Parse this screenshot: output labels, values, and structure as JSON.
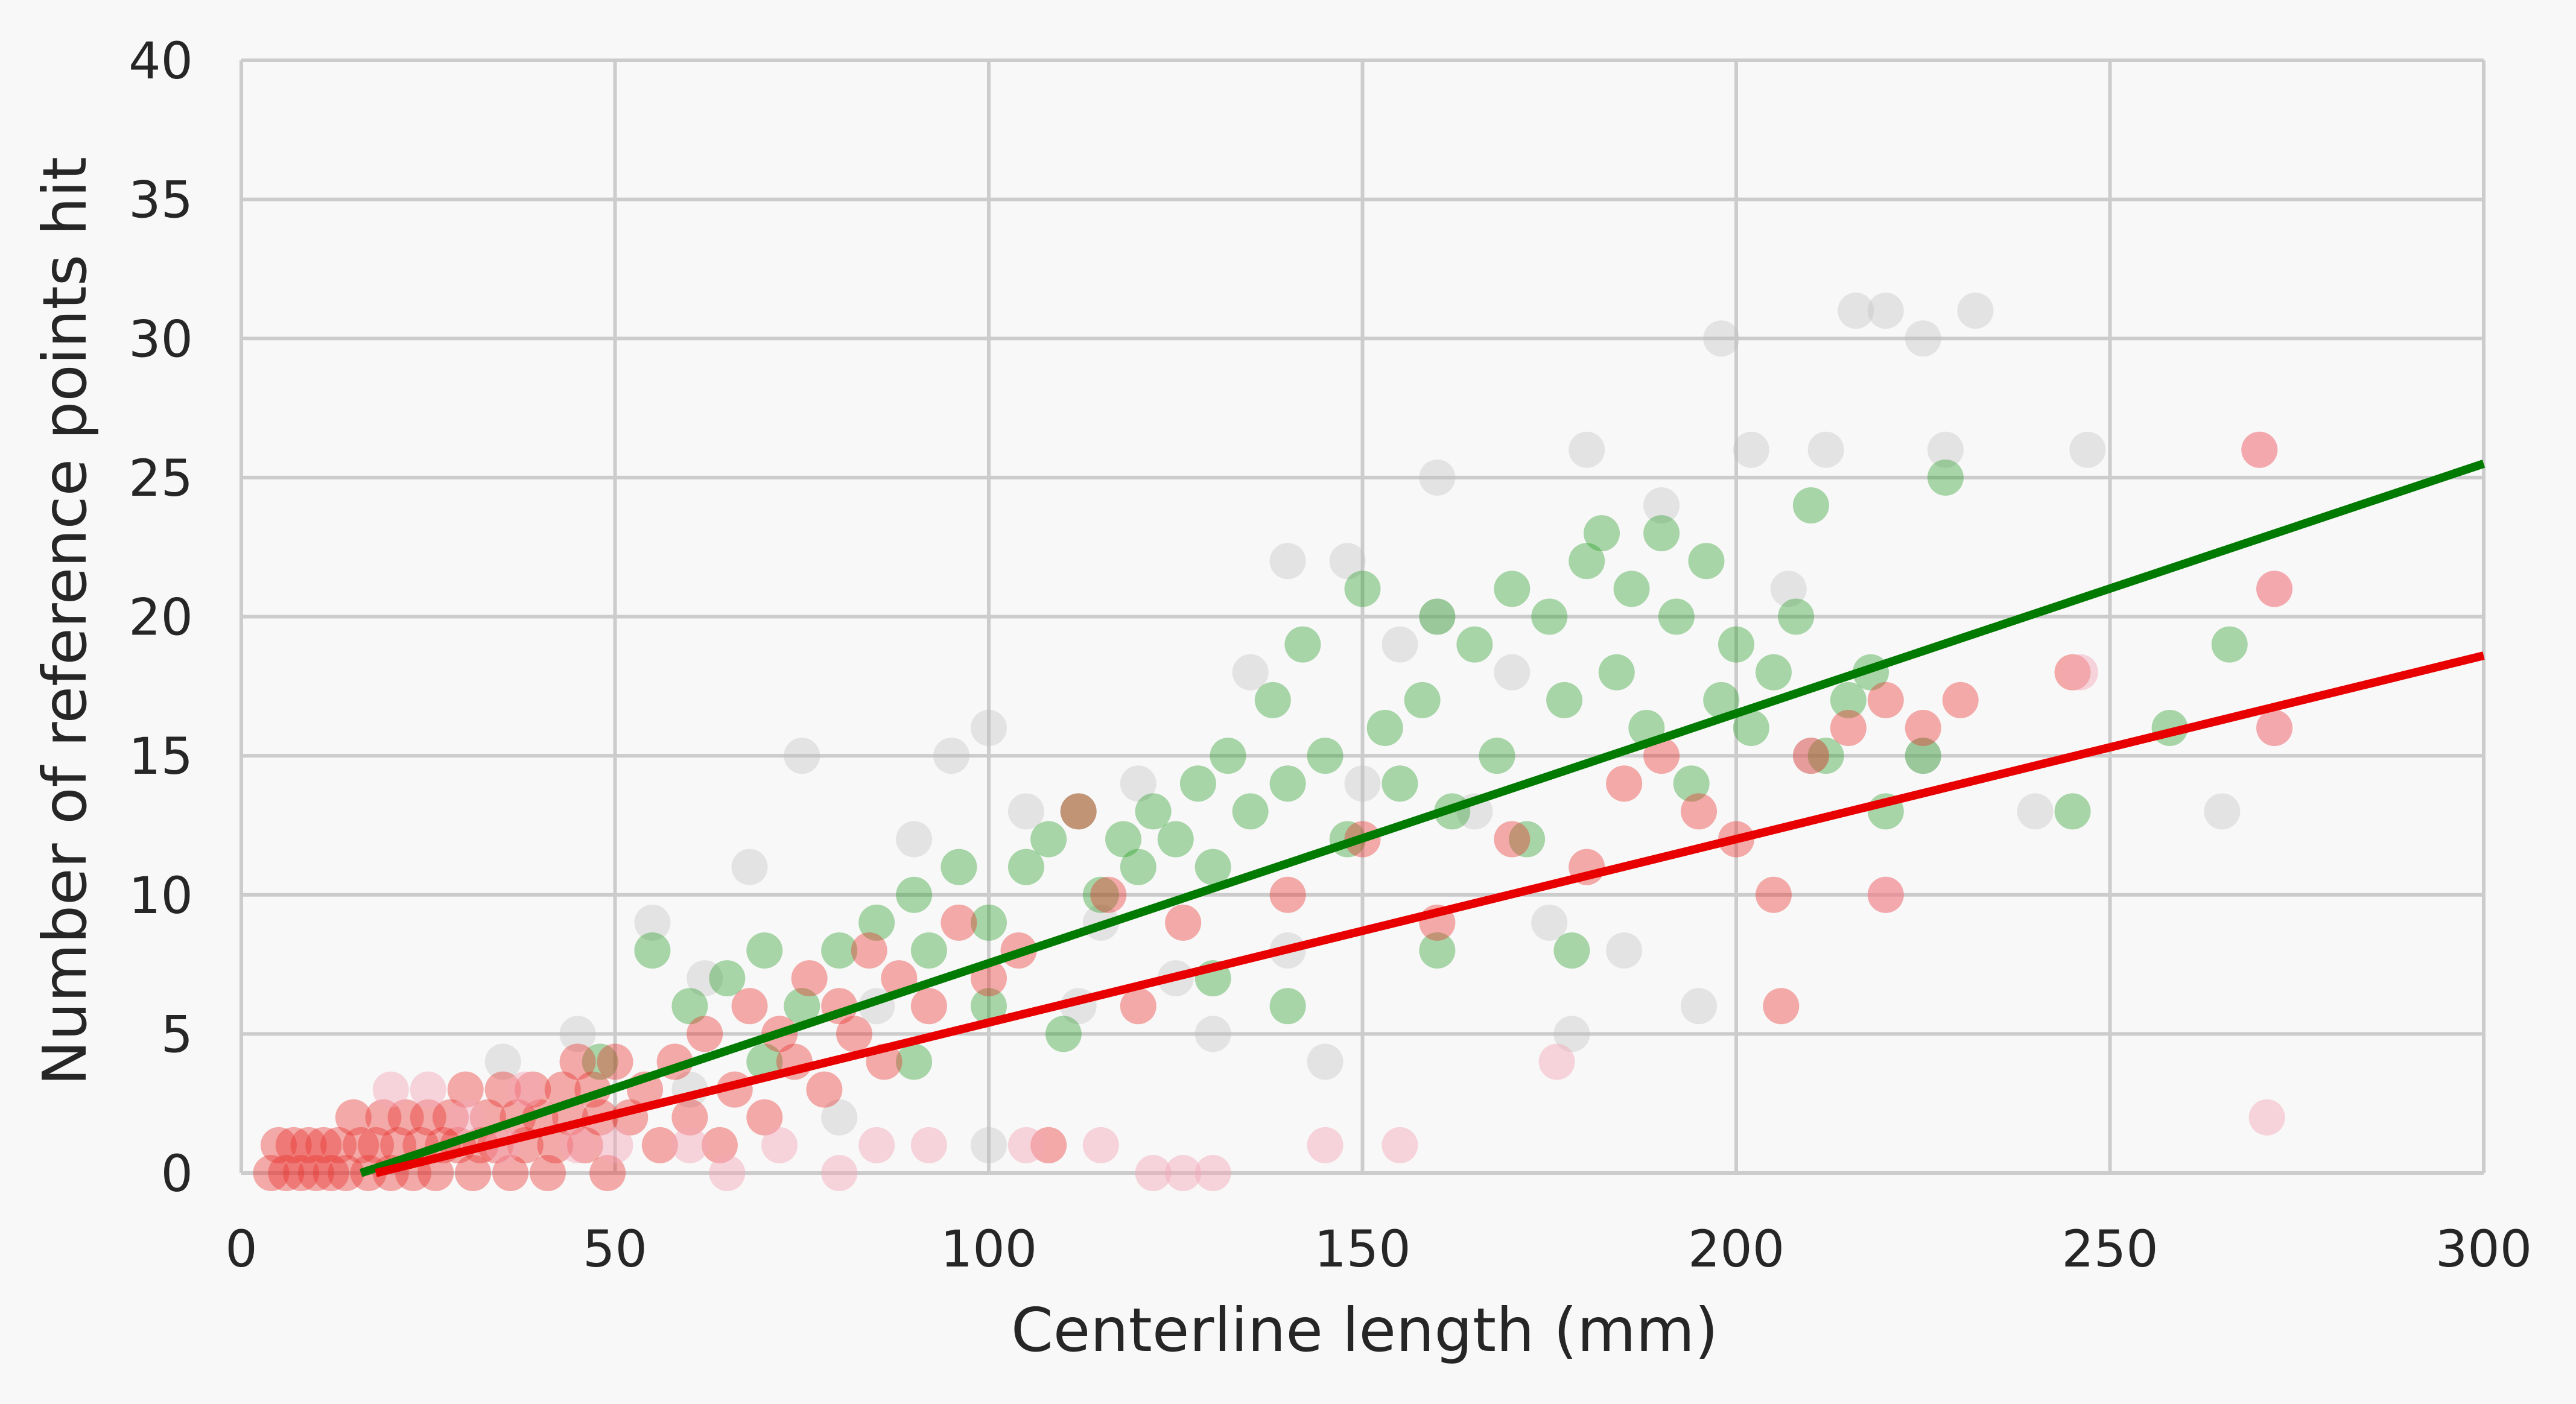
{
  "chart_data": {
    "type": "scatter",
    "title": "",
    "xlabel": "Centerline length (mm)",
    "ylabel": "Number of reference points hit",
    "xlim": [
      0,
      300
    ],
    "ylim": [
      0,
      40
    ],
    "xticks": [
      0,
      50,
      100,
      150,
      200,
      250,
      300
    ],
    "yticks": [
      0,
      5,
      10,
      15,
      20,
      25,
      30,
      35,
      40
    ],
    "grid": true,
    "legend": "none",
    "colors": {
      "background": "#f8f8f8",
      "grid": "#cccccc",
      "green_points": "#2ca02c",
      "red_points": "#e8322d",
      "gray_points": "#bdbdbd",
      "pink_points": "#f4a6b8",
      "green_line": "#007a00",
      "red_line": "#e80000"
    },
    "series": [
      {
        "kind": "scatter",
        "color_key": "gray_points",
        "points": [
          [
            35,
            4
          ],
          [
            45,
            5
          ],
          [
            55,
            9
          ],
          [
            62,
            7
          ],
          [
            68,
            11
          ],
          [
            75,
            15
          ],
          [
            85,
            6
          ],
          [
            90,
            12
          ],
          [
            95,
            15
          ],
          [
            100,
            16
          ],
          [
            105,
            13
          ],
          [
            115,
            9
          ],
          [
            125,
            7
          ],
          [
            135,
            18
          ],
          [
            140,
            22
          ],
          [
            148,
            22
          ],
          [
            150,
            14
          ],
          [
            155,
            19
          ],
          [
            160,
            20
          ],
          [
            165,
            13
          ],
          [
            170,
            18
          ],
          [
            175,
            9
          ],
          [
            180,
            26
          ],
          [
            185,
            8
          ],
          [
            190,
            24
          ],
          [
            195,
            6
          ],
          [
            198,
            30
          ],
          [
            202,
            26
          ],
          [
            207,
            21
          ],
          [
            212,
            26
          ],
          [
            216,
            31
          ],
          [
            220,
            31
          ],
          [
            225,
            30
          ],
          [
            228,
            26
          ],
          [
            232,
            31
          ],
          [
            240,
            13
          ],
          [
            247,
            26
          ],
          [
            265,
            13
          ],
          [
            112,
            6
          ],
          [
            130,
            5
          ],
          [
            145,
            4
          ],
          [
            178,
            5
          ],
          [
            210,
            15
          ],
          [
            225,
            15
          ],
          [
            160,
            25
          ],
          [
            140,
            8
          ],
          [
            120,
            14
          ],
          [
            60,
            3
          ],
          [
            80,
            2
          ],
          [
            100,
            1
          ]
        ]
      },
      {
        "kind": "scatter",
        "color_key": "green_points",
        "points": [
          [
            48,
            4
          ],
          [
            55,
            8
          ],
          [
            60,
            6
          ],
          [
            65,
            7
          ],
          [
            70,
            8
          ],
          [
            75,
            6
          ],
          [
            80,
            8
          ],
          [
            85,
            9
          ],
          [
            90,
            10
          ],
          [
            92,
            8
          ],
          [
            96,
            11
          ],
          [
            100,
            9
          ],
          [
            105,
            11
          ],
          [
            108,
            12
          ],
          [
            112,
            13
          ],
          [
            115,
            10
          ],
          [
            118,
            12
          ],
          [
            120,
            11
          ],
          [
            122,
            13
          ],
          [
            125,
            12
          ],
          [
            128,
            14
          ],
          [
            130,
            11
          ],
          [
            132,
            15
          ],
          [
            135,
            13
          ],
          [
            138,
            17
          ],
          [
            140,
            14
          ],
          [
            142,
            19
          ],
          [
            145,
            15
          ],
          [
            148,
            12
          ],
          [
            150,
            21
          ],
          [
            153,
            16
          ],
          [
            155,
            14
          ],
          [
            158,
            17
          ],
          [
            160,
            20
          ],
          [
            162,
            13
          ],
          [
            165,
            19
          ],
          [
            168,
            15
          ],
          [
            170,
            21
          ],
          [
            172,
            12
          ],
          [
            175,
            20
          ],
          [
            177,
            17
          ],
          [
            180,
            22
          ],
          [
            182,
            23
          ],
          [
            184,
            18
          ],
          [
            186,
            21
          ],
          [
            188,
            16
          ],
          [
            190,
            23
          ],
          [
            192,
            20
          ],
          [
            194,
            14
          ],
          [
            196,
            22
          ],
          [
            198,
            17
          ],
          [
            200,
            19
          ],
          [
            202,
            16
          ],
          [
            205,
            18
          ],
          [
            208,
            20
          ],
          [
            210,
            24
          ],
          [
            212,
            15
          ],
          [
            215,
            17
          ],
          [
            218,
            18
          ],
          [
            220,
            13
          ],
          [
            225,
            15
          ],
          [
            228,
            25
          ],
          [
            245,
            13
          ],
          [
            258,
            16
          ],
          [
            266,
            19
          ],
          [
            140,
            6
          ],
          [
            160,
            8
          ],
          [
            178,
            8
          ],
          [
            130,
            7
          ],
          [
            110,
            5
          ],
          [
            100,
            6
          ],
          [
            90,
            4
          ],
          [
            70,
            4
          ]
        ]
      },
      {
        "kind": "scatter",
        "color_key": "red_points",
        "points": [
          [
            4,
            0
          ],
          [
            5,
            1
          ],
          [
            6,
            0
          ],
          [
            7,
            1
          ],
          [
            8,
            0
          ],
          [
            9,
            1
          ],
          [
            10,
            0
          ],
          [
            11,
            1
          ],
          [
            12,
            0
          ],
          [
            13,
            1
          ],
          [
            14,
            0
          ],
          [
            15,
            2
          ],
          [
            16,
            1
          ],
          [
            17,
            0
          ],
          [
            18,
            1
          ],
          [
            19,
            2
          ],
          [
            20,
            0
          ],
          [
            21,
            1
          ],
          [
            22,
            2
          ],
          [
            23,
            0
          ],
          [
            24,
            1
          ],
          [
            25,
            2
          ],
          [
            26,
            0
          ],
          [
            27,
            1
          ],
          [
            28,
            2
          ],
          [
            29,
            1
          ],
          [
            30,
            3
          ],
          [
            31,
            0
          ],
          [
            32,
            1
          ],
          [
            33,
            2
          ],
          [
            34,
            1
          ],
          [
            35,
            3
          ],
          [
            36,
            0
          ],
          [
            37,
            2
          ],
          [
            38,
            1
          ],
          [
            39,
            3
          ],
          [
            40,
            2
          ],
          [
            41,
            0
          ],
          [
            42,
            1
          ],
          [
            43,
            3
          ],
          [
            44,
            2
          ],
          [
            45,
            4
          ],
          [
            46,
            1
          ],
          [
            47,
            3
          ],
          [
            48,
            2
          ],
          [
            49,
            0
          ],
          [
            50,
            4
          ],
          [
            52,
            2
          ],
          [
            54,
            3
          ],
          [
            56,
            1
          ],
          [
            58,
            4
          ],
          [
            60,
            2
          ],
          [
            62,
            5
          ],
          [
            64,
            1
          ],
          [
            66,
            3
          ],
          [
            68,
            6
          ],
          [
            70,
            2
          ],
          [
            72,
            5
          ],
          [
            74,
            4
          ],
          [
            76,
            7
          ],
          [
            78,
            3
          ],
          [
            80,
            6
          ],
          [
            82,
            5
          ],
          [
            84,
            8
          ],
          [
            86,
            4
          ],
          [
            88,
            7
          ],
          [
            92,
            6
          ],
          [
            96,
            9
          ],
          [
            100,
            7
          ],
          [
            104,
            8
          ],
          [
            108,
            1
          ],
          [
            112,
            13
          ],
          [
            116,
            10
          ],
          [
            120,
            6
          ],
          [
            126,
            9
          ],
          [
            140,
            10
          ],
          [
            150,
            12
          ],
          [
            160,
            9
          ],
          [
            170,
            12
          ],
          [
            180,
            11
          ],
          [
            185,
            14
          ],
          [
            190,
            15
          ],
          [
            195,
            13
          ],
          [
            200,
            12
          ],
          [
            206,
            6
          ],
          [
            210,
            15
          ],
          [
            215,
            16
          ],
          [
            220,
            17
          ],
          [
            225,
            16
          ],
          [
            230,
            17
          ],
          [
            245,
            18
          ],
          [
            270,
            26
          ],
          [
            272,
            21
          ],
          [
            272,
            16
          ],
          [
            205,
            10
          ],
          [
            220,
            10
          ]
        ]
      },
      {
        "kind": "scatter",
        "color_key": "pink_points",
        "points": [
          [
            20,
            3
          ],
          [
            25,
            3
          ],
          [
            30,
            2
          ],
          [
            35,
            1
          ],
          [
            38,
            3
          ],
          [
            45,
            1
          ],
          [
            50,
            1
          ],
          [
            60,
            1
          ],
          [
            65,
            0
          ],
          [
            72,
            1
          ],
          [
            80,
            0
          ],
          [
            85,
            1
          ],
          [
            92,
            1
          ],
          [
            105,
            1
          ],
          [
            115,
            1
          ],
          [
            130,
            0
          ],
          [
            145,
            1
          ],
          [
            155,
            1
          ],
          [
            176,
            4
          ],
          [
            220,
            10
          ],
          [
            246,
            18
          ],
          [
            270,
            26
          ],
          [
            272,
            21
          ],
          [
            272,
            16
          ],
          [
            271,
            2
          ],
          [
            122,
            0
          ],
          [
            126,
            0
          ]
        ]
      },
      {
        "kind": "line",
        "color_key": "green_line",
        "x": [
          16,
          300
        ],
        "y": [
          0,
          25.5
        ]
      },
      {
        "kind": "line",
        "color_key": "red_line",
        "x": [
          18,
          300
        ],
        "y": [
          0,
          18.6
        ]
      }
    ]
  }
}
